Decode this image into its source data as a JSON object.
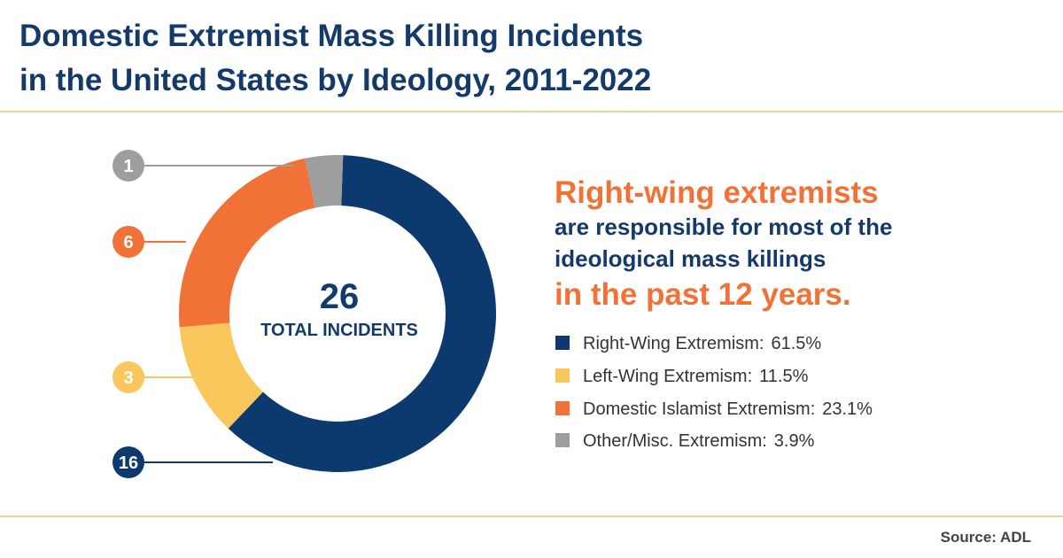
{
  "chart_data": {
    "type": "pie",
    "title": [
      "Domestic Extremist Mass Killing Incidents",
      "in the United States by Ideology, 2011-2022"
    ],
    "categories": [
      "Right-Wing Extremism:",
      "Left-Wing Extremism:",
      "Domestic Islamist Extremism:",
      "Other/Misc. Extremism:"
    ],
    "values": [
      16,
      3,
      6,
      1
    ],
    "colors": [
      "#0c3a6e",
      "#f9c75c",
      "#f07236",
      "#9e9e9e"
    ],
    "shares": [
      61.5,
      11.5,
      23.1,
      3.9
    ],
    "share_labels": [
      "61.5%",
      "11.5%",
      "23.1%",
      "3.9%"
    ],
    "total": 26,
    "center_label": "TOTAL INCIDENTS",
    "headline": [
      "Right-wing extremists",
      "are responsible for most of the",
      "ideological mass killings",
      "in the past 12 years."
    ],
    "source": "Source: ADL"
  }
}
